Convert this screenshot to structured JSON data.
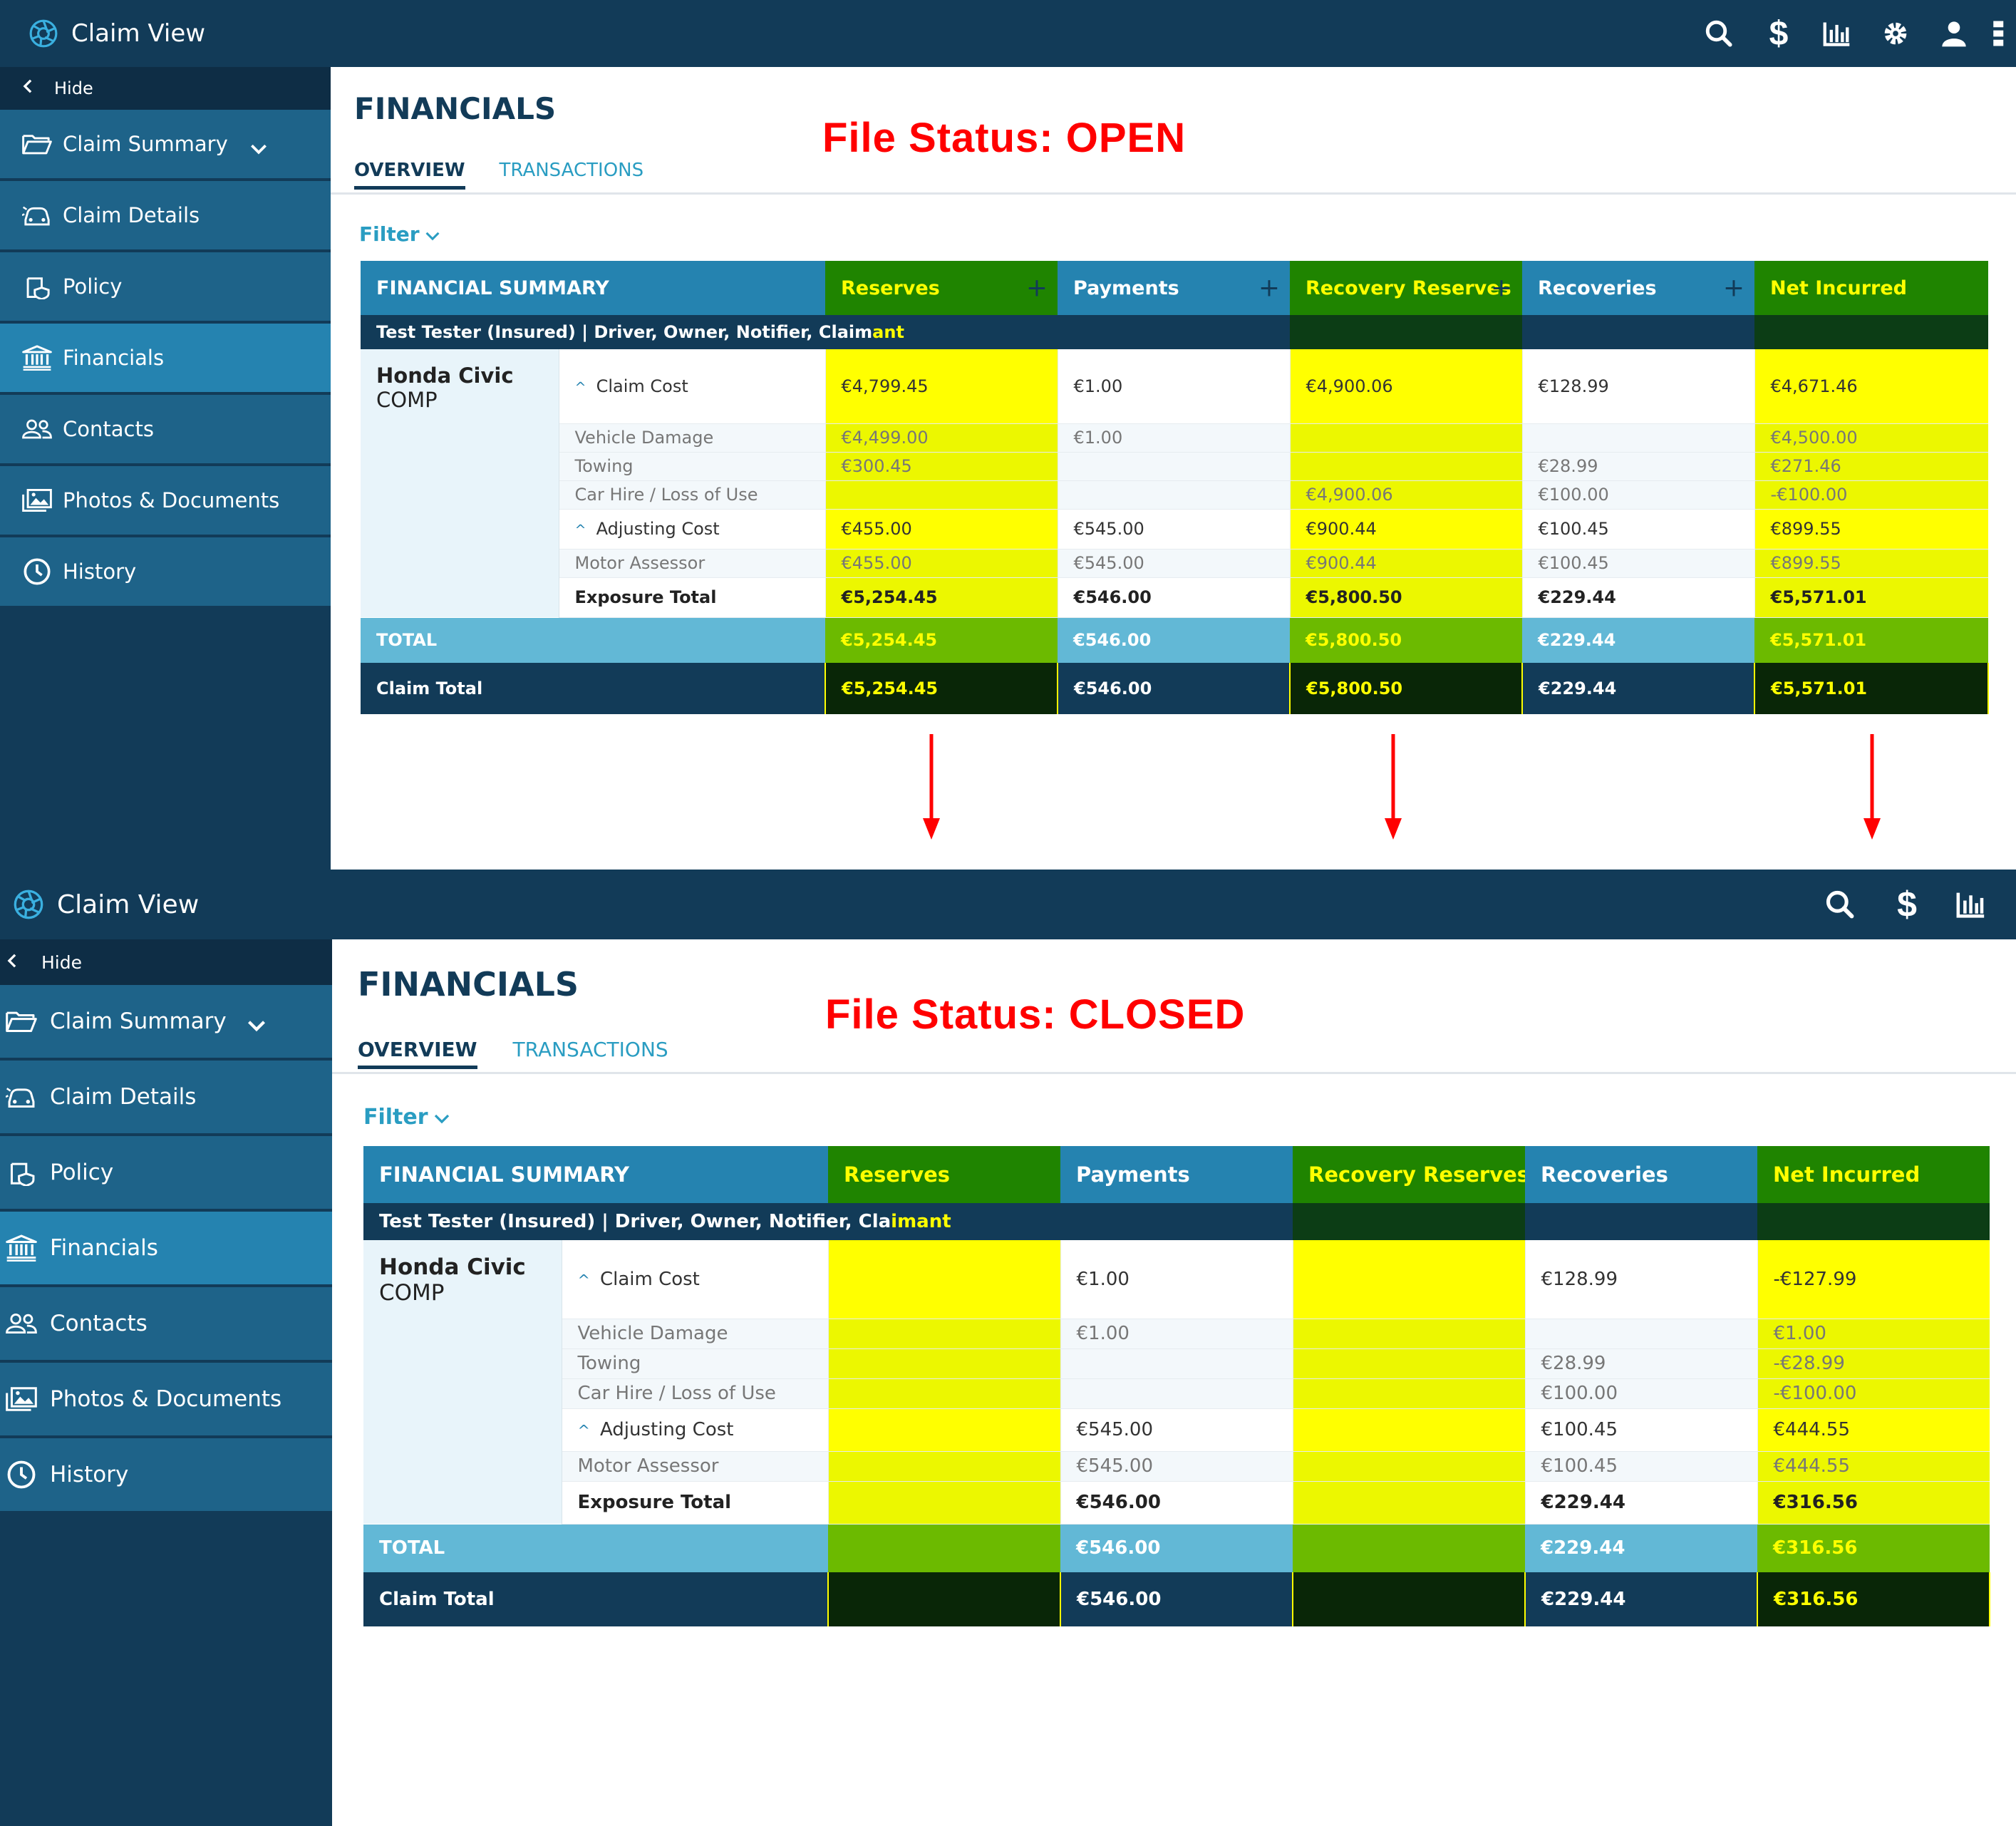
{
  "open": {
    "header": {
      "title": "Claim View"
    },
    "sidebar": {
      "hide_label": "Hide",
      "items": [
        {
          "label": "Claim Summary"
        },
        {
          "label": "Claim Details"
        },
        {
          "label": "Policy"
        },
        {
          "label": "Financials"
        },
        {
          "label": "Contacts"
        },
        {
          "label": "Photos & Documents"
        },
        {
          "label": "History"
        }
      ]
    },
    "page_title": "FINANCIALS",
    "status_text": "File Status: OPEN",
    "tabs": [
      {
        "label": "OVERVIEW"
      },
      {
        "label": "TRANSACTIONS"
      }
    ],
    "filter_label": "Filter",
    "table": {
      "section_title": "FINANCIAL SUMMARY",
      "columns": [
        {
          "label": "Reserves",
          "plus": "+"
        },
        {
          "label": "Payments",
          "plus": "+"
        },
        {
          "label": "Recovery Reserves",
          "plus": "+"
        },
        {
          "label": "Recoveries",
          "plus": "+"
        },
        {
          "label": "Net Incurred",
          "plus": ""
        }
      ],
      "party_main": "Test Tester (Insured) | Driver, Owner, Notifier, Claim",
      "party_tail": "ant",
      "vehicle_name": "Honda Civic",
      "vehicle_type": "COMP",
      "rows": [
        {
          "label": "Claim Cost",
          "values": [
            "€4,799.45",
            "€1.00",
            "€4,900.06",
            "€128.99",
            "€4,671.46"
          ]
        },
        {
          "label": "Vehicle Damage",
          "values": [
            "€4,499.00",
            "€1.00",
            "",
            "",
            "€4,500.00"
          ]
        },
        {
          "label": "Towing",
          "values": [
            "€300.45",
            "",
            "",
            "€28.99",
            "€271.46"
          ]
        },
        {
          "label": "Car Hire / Loss of Use",
          "values": [
            "",
            "",
            "€4,900.06",
            "€100.00",
            "-€100.00"
          ]
        },
        {
          "label": "Adjusting Cost",
          "values": [
            "€455.00",
            "€545.00",
            "€900.44",
            "€100.45",
            "€899.55"
          ]
        },
        {
          "label": "Motor Assessor",
          "values": [
            "€455.00",
            "€545.00",
            "€900.44",
            "€100.45",
            "€899.55"
          ]
        },
        {
          "label": "Exposure Total",
          "values": [
            "€5,254.45",
            "€546.00",
            "€5,800.50",
            "€229.44",
            "€5,571.01"
          ]
        }
      ],
      "total_label": "TOTAL",
      "total_values": [
        "€5,254.45",
        "€546.00",
        "€5,800.50",
        "€229.44",
        "€5,571.01"
      ],
      "claim_total_label": "Claim Total",
      "claim_total_values": [
        "€5,254.45",
        "€546.00",
        "€5,800.50",
        "€229.44",
        "€5,571.01"
      ]
    }
  },
  "closed": {
    "header": {
      "title": "Claim View"
    },
    "sidebar": {
      "hide_label": "Hide",
      "items": [
        {
          "label": "Claim Summary"
        },
        {
          "label": "Claim Details"
        },
        {
          "label": "Policy"
        },
        {
          "label": "Financials"
        },
        {
          "label": "Contacts"
        },
        {
          "label": "Photos & Documents"
        },
        {
          "label": "History"
        }
      ]
    },
    "page_title": "FINANCIALS",
    "status_text": "File Status: CLOSED",
    "tabs": [
      {
        "label": "OVERVIEW"
      },
      {
        "label": "TRANSACTIONS"
      }
    ],
    "filter_label": "Filter",
    "table": {
      "section_title": "FINANCIAL SUMMARY",
      "columns": [
        {
          "label": "Reserves",
          "plus": ""
        },
        {
          "label": "Payments",
          "plus": ""
        },
        {
          "label": "Recovery Reserves",
          "plus": ""
        },
        {
          "label": "Recoveries",
          "plus": ""
        },
        {
          "label": "Net Incurred",
          "plus": ""
        }
      ],
      "party_main": "Test Tester (Insured) | Driver, Owner, Notifier, Cla",
      "party_tail": "imant",
      "vehicle_name": "Honda Civic",
      "vehicle_type": "COMP",
      "rows": [
        {
          "label": "Claim Cost",
          "values": [
            "",
            "€1.00",
            "",
            "€128.99",
            "-€127.99"
          ]
        },
        {
          "label": "Vehicle Damage",
          "values": [
            "",
            "€1.00",
            "",
            "",
            "€1.00"
          ]
        },
        {
          "label": "Towing",
          "values": [
            "",
            "",
            "",
            "€28.99",
            "-€28.99"
          ]
        },
        {
          "label": "Car Hire / Loss of Use",
          "values": [
            "",
            "",
            "",
            "€100.00",
            "-€100.00"
          ]
        },
        {
          "label": "Adjusting Cost",
          "values": [
            "",
            "€545.00",
            "",
            "€100.45",
            "€444.55"
          ]
        },
        {
          "label": "Motor Assessor",
          "values": [
            "",
            "€545.00",
            "",
            "€100.45",
            "€444.55"
          ]
        },
        {
          "label": "Exposure Total",
          "values": [
            "",
            "€546.00",
            "",
            "€229.44",
            "€316.56"
          ]
        }
      ],
      "total_label": "TOTAL",
      "total_values": [
        "",
        "€546.00",
        "",
        "€229.44",
        "€316.56"
      ],
      "claim_total_label": "Claim Total",
      "claim_total_values": [
        "",
        "€546.00",
        "",
        "€229.44",
        "€316.56"
      ]
    }
  },
  "accent_colors": {
    "navy": "#123b58",
    "nav_blue": "#1e6389",
    "active_blue": "#2583b0",
    "link_blue": "#2a9dc2",
    "highlight_yellow": "#ffff00",
    "highlight_green": "#1f8400",
    "status_red": "#ff0000"
  },
  "icons": {
    "brand": "camera-aperture-icon",
    "toolbar_open": [
      "search-icon",
      "dollar-icon",
      "bar-chart-icon",
      "gear-icon",
      "user-icon",
      "grid-icon"
    ],
    "toolbar_closed": [
      "search-icon",
      "dollar-icon",
      "bar-chart-icon"
    ],
    "nav": [
      "folder-icon",
      "car-icon",
      "shield-icon",
      "bank-icon",
      "people-icon",
      "photos-icon",
      "clock-icon"
    ]
  }
}
